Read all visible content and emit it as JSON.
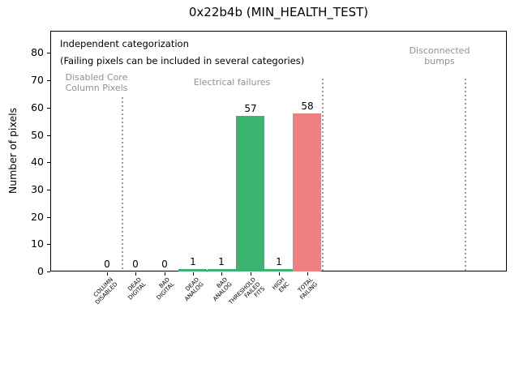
{
  "chart_data": {
    "type": "bar",
    "title": "0x22b4b (MIN_HEALTH_TEST)",
    "xlabel": "",
    "ylabel": "Number of pixels",
    "categories": [
      "COLUMN\nDISABLED",
      "DEAD\nDIGITAL",
      "BAD\nDIGITAL",
      "DEAD\nANALOG",
      "BAD\nANALOG",
      "THRESHOLD\nFAILED\nFITS",
      "HIGH\nENC",
      "TOTAL\nFAILING"
    ],
    "values": [
      0,
      0,
      0,
      1,
      1,
      57,
      1,
      58
    ],
    "value_labels": [
      "0",
      "0",
      "0",
      "1",
      "1",
      "57",
      "1",
      "58"
    ],
    "bar_colors": [
      "#3cb371",
      "#3cb371",
      "#3cb371",
      "#3cb371",
      "#3cb371",
      "#3cb371",
      "#3cb371",
      "#f08080"
    ],
    "yticks": [
      0,
      10,
      20,
      30,
      40,
      50,
      60,
      70,
      80
    ],
    "ylim": [
      0,
      88
    ],
    "xlim": [
      -2,
      14
    ],
    "grid": false,
    "legend": null,
    "separators": {
      "x_positions": [
        0.5,
        7.5,
        12.5
      ],
      "style": "dotted",
      "color": "#999999"
    },
    "annotations": [
      {
        "text": "Independent categorization",
        "color": "#000000"
      },
      {
        "text": "(Failing pixels can be included in several categories)",
        "color": "#000000"
      },
      {
        "text": "Disabled Core\nColumn Pixels",
        "color": "#909090"
      },
      {
        "text": "Electrical failures",
        "color": "#909090"
      },
      {
        "text": "Disconnected\nbumps",
        "color": "#909090"
      }
    ]
  },
  "colors": {
    "bar_green": "#3cb371",
    "bar_red": "#f08080",
    "separator_gray": "#999999",
    "region_label_gray": "#909090",
    "axis_black": "#000000"
  }
}
